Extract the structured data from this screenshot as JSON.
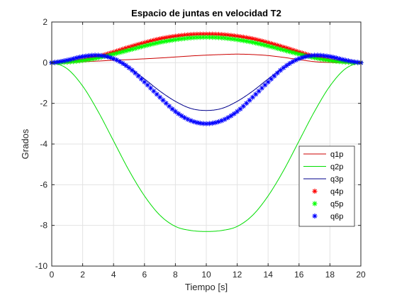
{
  "chart_data": {
    "type": "line",
    "title": "Espacio de juntas en velocidad T2",
    "xlabel": "Tiempo [s]",
    "ylabel": "Grados",
    "xlim": [
      0,
      20
    ],
    "ylim": [
      -10,
      2
    ],
    "xticks": [
      "0",
      "2",
      "4",
      "6",
      "8",
      "10",
      "12",
      "14",
      "16",
      "18",
      "20"
    ],
    "yticks": [
      "-10",
      "-8",
      "-6",
      "-4",
      "-2",
      "0",
      "2"
    ],
    "grid": true,
    "legend_position": "right",
    "x": [
      0,
      1,
      2,
      3,
      4,
      5,
      6,
      7,
      8,
      9,
      10,
      11,
      12,
      13,
      14,
      15,
      16,
      17,
      18,
      19,
      20
    ],
    "series": [
      {
        "name": "q1p",
        "style": "line",
        "color": "#cc0000",
        "values": [
          0,
          0.02,
          0.05,
          0.08,
          0.12,
          0.15,
          0.19,
          0.23,
          0.28,
          0.33,
          0.37,
          0.4,
          0.42,
          0.4,
          0.35,
          0.26,
          0.15,
          0.05,
          0.01,
          0,
          0
        ]
      },
      {
        "name": "q2p",
        "style": "line",
        "color": "#00dd00",
        "values": [
          0,
          -0.3,
          -1.15,
          -2.4,
          -3.85,
          -5.3,
          -6.55,
          -7.5,
          -8.05,
          -8.25,
          -8.3,
          -8.25,
          -8.05,
          -7.5,
          -6.55,
          -5.3,
          -3.85,
          -2.4,
          -1.15,
          -0.3,
          0
        ]
      },
      {
        "name": "q3p",
        "style": "line",
        "color": "#00008b",
        "values": [
          0,
          0.1,
          0.25,
          0.3,
          0.15,
          -0.25,
          -0.8,
          -1.4,
          -1.9,
          -2.25,
          -2.35,
          -2.25,
          -1.9,
          -1.4,
          -0.8,
          -0.25,
          0.15,
          0.3,
          0.25,
          0.1,
          0
        ]
      },
      {
        "name": "q4p",
        "style": "marker",
        "color": "#ff0000",
        "values": [
          0,
          0.04,
          0.14,
          0.3,
          0.52,
          0.76,
          0.98,
          1.17,
          1.3,
          1.38,
          1.4,
          1.38,
          1.3,
          1.17,
          0.98,
          0.76,
          0.52,
          0.3,
          0.14,
          0.04,
          0
        ]
      },
      {
        "name": "q5p",
        "style": "marker",
        "color": "#00ff00",
        "values": [
          0,
          0.03,
          0.11,
          0.24,
          0.42,
          0.62,
          0.82,
          1.0,
          1.13,
          1.22,
          1.25,
          1.22,
          1.13,
          1.0,
          0.82,
          0.62,
          0.42,
          0.24,
          0.11,
          0.03,
          0
        ]
      },
      {
        "name": "q6p",
        "style": "marker",
        "color": "#0000ff",
        "values": [
          0,
          0.12,
          0.3,
          0.36,
          0.2,
          -0.25,
          -0.95,
          -1.7,
          -2.4,
          -2.85,
          -3.0,
          -2.85,
          -2.4,
          -1.7,
          -0.95,
          -0.25,
          0.2,
          0.36,
          0.3,
          0.12,
          0
        ]
      }
    ]
  }
}
